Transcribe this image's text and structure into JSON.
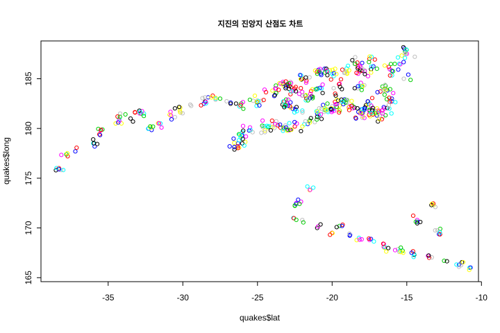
{
  "chart_data": {
    "type": "scatter",
    "title": "지진의 진앙지 산점도 차트",
    "xlabel": "quakes$lat",
    "ylabel": "quakes$long",
    "xlim": [
      -39.5,
      -10.2
    ],
    "ylim": [
      164.6,
      188.8
    ],
    "xticks": [
      -35,
      -30,
      -25,
      -20,
      -15,
      -10
    ],
    "yticks": [
      165,
      170,
      175,
      180,
      185
    ],
    "grid": false,
    "legend": "none",
    "marker": "open-circle",
    "colors": [
      "#000000",
      "#ff0000",
      "#00cd00",
      "#0000ff",
      "#00ffff",
      "#ff00ff",
      "#ffff00",
      "#bebebe"
    ],
    "clusters": [
      {
        "n": 70,
        "pts": [
          [
            -38.5,
            175.8
          ],
          [
            -38.3,
            176.0
          ],
          [
            -37.8,
            177.4
          ],
          [
            -37.2,
            177.7
          ],
          [
            -36.0,
            178.5
          ],
          [
            -35.5,
            179.8
          ],
          [
            -34.5,
            180.5
          ],
          [
            -34.2,
            181.5
          ],
          [
            -33.5,
            181.0
          ],
          [
            -33.2,
            181.6
          ],
          [
            -32.8,
            181.5
          ],
          [
            -32.3,
            180.0
          ],
          [
            -31.5,
            180.5
          ],
          [
            -30.8,
            181.3
          ],
          [
            -30.2,
            181.8
          ],
          [
            -29.5,
            182.4
          ],
          [
            -28.5,
            182.7
          ],
          [
            -28.0,
            183.3
          ],
          [
            -27.5,
            183.0
          ],
          [
            -26.8,
            182.6
          ],
          [
            -26.2,
            182.2
          ]
        ],
        "jx": 0.45,
        "jy": 0.55
      },
      {
        "n": 230,
        "pts": [
          [
            -26.3,
            178.5
          ],
          [
            -26.0,
            179.3
          ],
          [
            -25.5,
            180.1
          ],
          [
            -24.5,
            179.8
          ],
          [
            -24.0,
            180.4
          ],
          [
            -23.2,
            180.0
          ],
          [
            -22.5,
            180.2
          ],
          [
            -21.5,
            180.8
          ],
          [
            -21.0,
            181.5
          ],
          [
            -20.5,
            182.0
          ],
          [
            -20.0,
            181.8
          ],
          [
            -19.5,
            182.3
          ],
          [
            -19.0,
            182.6
          ],
          [
            -18.5,
            182.1
          ],
          [
            -18.0,
            181.5
          ],
          [
            -17.5,
            181.8
          ],
          [
            -17.0,
            181.3
          ],
          [
            -22.0,
            181.8
          ],
          [
            -23.0,
            182.5
          ],
          [
            -24.0,
            183.8
          ],
          [
            -25.0,
            182.8
          ],
          [
            -23.3,
            184.5
          ],
          [
            -22.5,
            184.0
          ],
          [
            -21.8,
            183.3
          ]
        ],
        "jx": 0.7,
        "jy": 0.7
      },
      {
        "n": 150,
        "pts": [
          [
            -22.0,
            185.0
          ],
          [
            -21.0,
            185.5
          ],
          [
            -20.5,
            186.0
          ],
          [
            -20.0,
            185.5
          ],
          [
            -19.5,
            184.5
          ],
          [
            -19.0,
            185.5
          ],
          [
            -18.5,
            186.5
          ],
          [
            -18.0,
            185.8
          ],
          [
            -17.5,
            187.0
          ],
          [
            -17.0,
            186.0
          ],
          [
            -16.0,
            185.8
          ],
          [
            -15.5,
            186.5
          ],
          [
            -15.0,
            187.5
          ],
          [
            -16.5,
            184.0
          ],
          [
            -15.2,
            185.0
          ],
          [
            -21.0,
            184.0
          ],
          [
            -19.8,
            183.5
          ],
          [
            -18.0,
            184.2
          ],
          [
            -16.0,
            183.0
          ],
          [
            -17.5,
            182.5
          ],
          [
            -16.5,
            182.0
          ]
        ],
        "jx": 0.6,
        "jy": 0.75
      },
      {
        "n": 70,
        "pts": [
          [
            -22.6,
            171.0
          ],
          [
            -22.4,
            172.5
          ],
          [
            -21.5,
            173.8
          ],
          [
            -22.0,
            170.8
          ],
          [
            -21.0,
            170.0
          ],
          [
            -20.0,
            169.5
          ],
          [
            -19.5,
            170.2
          ],
          [
            -18.8,
            169.3
          ],
          [
            -18.2,
            169.0
          ],
          [
            -17.5,
            168.8
          ],
          [
            -16.5,
            168.0
          ],
          [
            -15.5,
            167.6
          ],
          [
            -14.5,
            167.3
          ],
          [
            -13.5,
            167.0
          ],
          [
            -12.5,
            166.7
          ],
          [
            -11.5,
            166.3
          ],
          [
            -10.8,
            166.0
          ],
          [
            -14.3,
            170.8
          ],
          [
            -13.2,
            172.3
          ],
          [
            -12.8,
            169.6
          ]
        ],
        "jx": 0.35,
        "jy": 0.45
      }
    ]
  }
}
